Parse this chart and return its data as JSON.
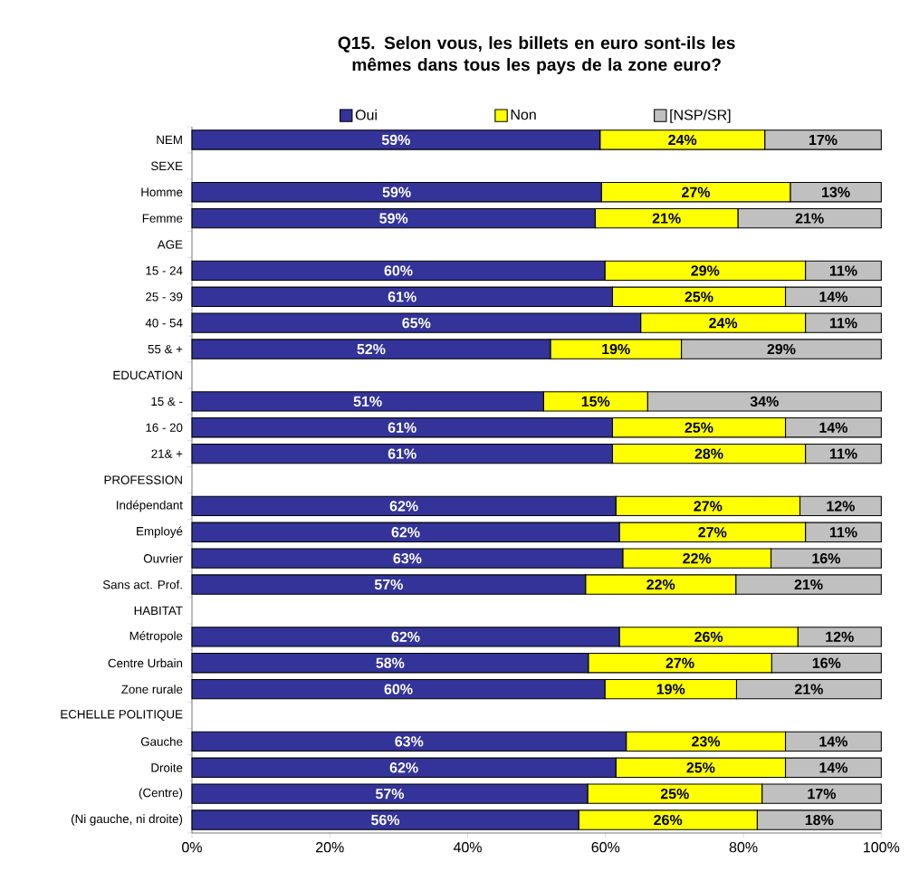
{
  "chart_data": {
    "type": "bar",
    "orientation": "horizontal",
    "stacked": true,
    "title": "Q15. Selon vous, les billets en euro sont-ils les mêmes dans tous les pays de la zone euro?",
    "categories": [
      "NEM",
      "SEXE",
      "Homme",
      "Femme",
      "AGE",
      "15 - 24",
      "25 - 39",
      "40 - 54",
      "55 & +",
      "EDUCATION",
      "15 & -",
      "16 - 20",
      "21& +",
      "PROFESSION",
      "Indépendant",
      "Employé",
      "Ouvrier",
      "Sans act. Prof.",
      "HABITAT",
      "Métropole",
      "Centre Urbain",
      "Zone rurale",
      "ECHELLE POLITIQUE",
      "Gauche",
      "Droite",
      "(Centre)",
      "(Ni gauche, ni droite)"
    ],
    "series": [
      {
        "name": "Oui",
        "color": "#333399",
        "values": [
          59.2,
          null,
          59.4,
          58.5,
          null,
          59.9,
          61.0,
          65.1,
          52.0,
          null,
          51.0,
          61.0,
          61.0,
          null,
          61.5,
          62.0,
          62.5,
          57.1,
          null,
          62.0,
          57.5,
          59.9,
          null,
          63.0,
          61.5,
          57.4,
          56.1
        ],
        "value_labels": [
          "59%",
          null,
          "59%",
          "59%",
          null,
          "60%",
          "61%",
          "65%",
          "52%",
          null,
          "51%",
          "61%",
          "61%",
          null,
          "62%",
          "62%",
          "63%",
          "57%",
          null,
          "62%",
          "58%",
          "60%",
          null,
          "63%",
          "62%",
          "57%",
          "56%"
        ]
      },
      {
        "name": "Non",
        "color": "#ffff00",
        "values": [
          23.9,
          null,
          27.4,
          20.7,
          null,
          29.1,
          25.1,
          23.9,
          19.0,
          null,
          15.1,
          25.1,
          28.0,
          null,
          26.7,
          27.0,
          21.5,
          21.8,
          null,
          25.9,
          26.6,
          19.1,
          null,
          23.1,
          24.6,
          25.3,
          25.9
        ],
        "value_labels": [
          "24%",
          null,
          "27%",
          "21%",
          null,
          "29%",
          "25%",
          "24%",
          "19%",
          null,
          "15%",
          "25%",
          "28%",
          null,
          "27%",
          "27%",
          "22%",
          "22%",
          null,
          "26%",
          "27%",
          "19%",
          null,
          "23%",
          "25%",
          "25%",
          "26%"
        ]
      },
      {
        "name": "[NSP/SR]",
        "color": "#c0c0c0",
        "values": [
          16.9,
          null,
          13.2,
          20.8,
          null,
          11.0,
          13.9,
          11.0,
          29.0,
          null,
          33.9,
          13.9,
          11.0,
          null,
          11.8,
          11.0,
          16.0,
          21.1,
          null,
          12.1,
          15.9,
          21.0,
          null,
          13.9,
          13.9,
          17.3,
          18.0
        ],
        "value_labels": [
          "17%",
          null,
          "13%",
          "21%",
          null,
          "11%",
          "14%",
          "11%",
          "29%",
          null,
          "34%",
          "14%",
          "11%",
          null,
          "12%",
          "11%",
          "16%",
          "21%",
          null,
          "12%",
          "16%",
          "21%",
          null,
          "14%",
          "14%",
          "17%",
          "18%"
        ]
      }
    ],
    "xlim": [
      0,
      100
    ],
    "xticks": [
      {
        "value": 0,
        "label": "0%"
      },
      {
        "value": 20,
        "label": "20%"
      },
      {
        "value": 40,
        "label": "40%"
      },
      {
        "value": 60,
        "label": "60%"
      },
      {
        "value": 80,
        "label": "80%"
      },
      {
        "value": 100,
        "label": "100%"
      }
    ],
    "legend": "top",
    "grid": false
  }
}
